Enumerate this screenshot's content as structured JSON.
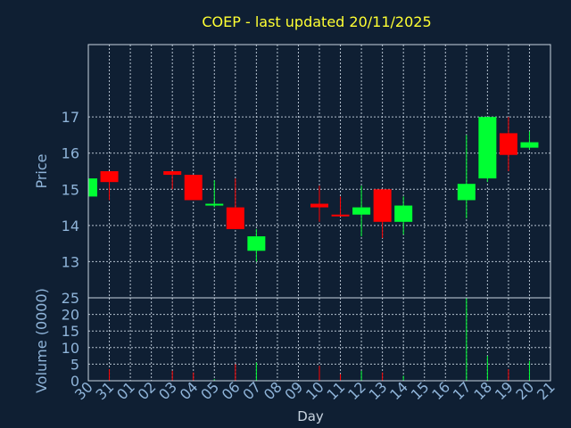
{
  "chart_data": {
    "type": "candlestick",
    "title": "COEP - last updated 20/11/2025",
    "xlabel": "Day",
    "price_label": "Price",
    "volume_label": "Volume (0000)",
    "x_ticks": [
      "30",
      "31",
      "01",
      "02",
      "03",
      "04",
      "05",
      "06",
      "07",
      "08",
      "09",
      "10",
      "11",
      "12",
      "13",
      "14",
      "15",
      "16",
      "17",
      "18",
      "19",
      "20",
      "21"
    ],
    "price_ticks": [
      13,
      14,
      15,
      16,
      17
    ],
    "price_range": [
      12.0,
      19.0
    ],
    "volume_ticks": [
      0,
      5,
      10,
      15,
      20,
      25
    ],
    "volume_range": [
      0,
      25
    ],
    "colors": {
      "up": "#00ff33",
      "down": "#ff0000",
      "title": "#ffff33",
      "tick": "#8fb4d9"
    },
    "candles": [
      {
        "day": "30",
        "open": 14.8,
        "high": 15.3,
        "low": 14.8,
        "close": 15.3,
        "volume": 0.5
      },
      {
        "day": "31",
        "open": 15.5,
        "high": 15.5,
        "low": 14.7,
        "close": 15.2,
        "volume": 3.5
      },
      {
        "day": "03",
        "open": 15.5,
        "high": 15.5,
        "low": 15.0,
        "close": 15.4,
        "volume": 3.0
      },
      {
        "day": "04",
        "open": 15.4,
        "high": 15.4,
        "low": 14.7,
        "close": 14.7,
        "volume": 2.5
      },
      {
        "day": "05",
        "open": 14.55,
        "high": 15.25,
        "low": 14.5,
        "close": 14.6,
        "volume": 0.5
      },
      {
        "day": "06",
        "open": 14.5,
        "high": 15.3,
        "low": 13.9,
        "close": 13.9,
        "volume": 5.0
      },
      {
        "day": "07",
        "open": 13.3,
        "high": 13.9,
        "low": 13.0,
        "close": 13.7,
        "volume": 5.5
      },
      {
        "day": "10",
        "open": 14.6,
        "high": 15.1,
        "low": 14.1,
        "close": 14.5,
        "volume": 4.5
      },
      {
        "day": "11",
        "open": 14.3,
        "high": 14.8,
        "low": 14.25,
        "close": 14.28,
        "volume": 2.0
      },
      {
        "day": "12",
        "open": 14.3,
        "high": 15.1,
        "low": 13.7,
        "close": 14.5,
        "volume": 3.0
      },
      {
        "day": "13",
        "open": 15.0,
        "high": 15.0,
        "low": 13.65,
        "close": 14.1,
        "volume": 2.5
      },
      {
        "day": "14",
        "open": 14.1,
        "high": 14.8,
        "low": 13.75,
        "close": 14.55,
        "volume": 1.5
      },
      {
        "day": "17",
        "open": 14.7,
        "high": 16.5,
        "low": 14.2,
        "close": 15.15,
        "volume": 25.0
      },
      {
        "day": "18",
        "open": 15.3,
        "high": 17.0,
        "low": 15.2,
        "close": 17.0,
        "volume": 7.5
      },
      {
        "day": "19",
        "open": 16.55,
        "high": 17.0,
        "low": 15.5,
        "close": 15.95,
        "volume": 3.5
      },
      {
        "day": "20",
        "open": 16.15,
        "high": 16.6,
        "low": 16.1,
        "close": 16.3,
        "volume": 6.0
      }
    ]
  }
}
